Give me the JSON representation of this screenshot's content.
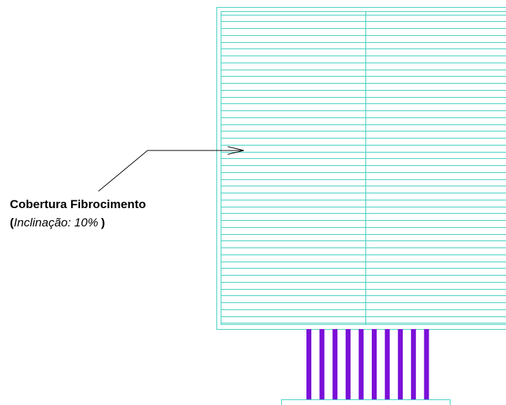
{
  "label": {
    "title": "Cobertura Fibrocimento",
    "open": "(",
    "slope": "Inclinação: 10%",
    "close": ")"
  }
}
